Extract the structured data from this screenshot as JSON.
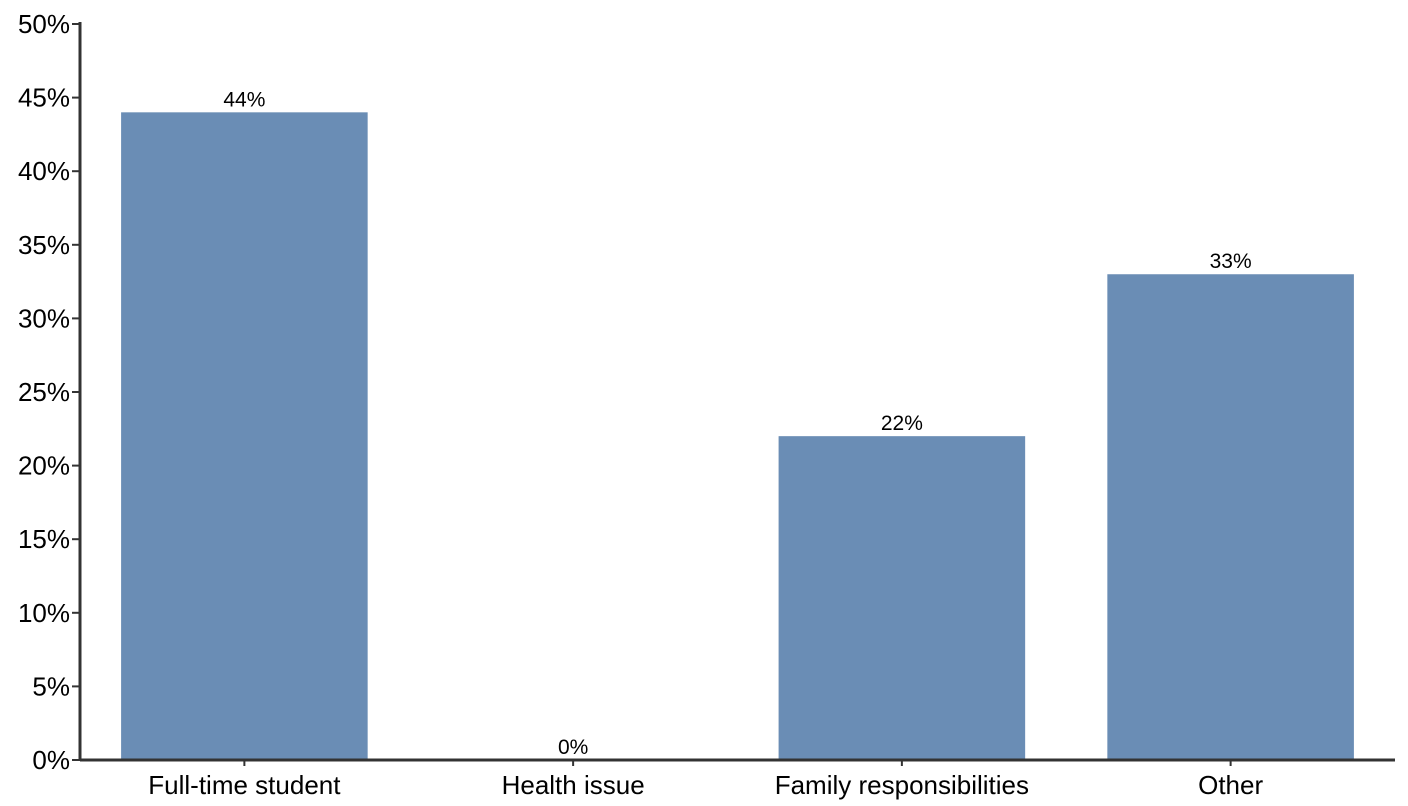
{
  "chart_data": {
    "type": "bar",
    "categories": [
      "Full-time student",
      "Health issue",
      "Family responsibilities",
      "Other"
    ],
    "values": [
      44,
      0,
      22,
      33
    ],
    "data_labels": [
      "44%",
      "0%",
      "22%",
      "33%"
    ],
    "title": "",
    "xlabel": "",
    "ylabel": "",
    "ylim": [
      0,
      50
    ],
    "y_ticks": [
      0,
      5,
      10,
      15,
      20,
      25,
      30,
      35,
      40,
      45,
      50
    ],
    "y_tick_labels": [
      "0%",
      "5%",
      "10%",
      "15%",
      "20%",
      "25%",
      "30%",
      "35%",
      "40%",
      "45%",
      "50%"
    ],
    "grid": false,
    "legend": "none",
    "bar_color": "#6a8db5",
    "axis_color": "#333333"
  }
}
